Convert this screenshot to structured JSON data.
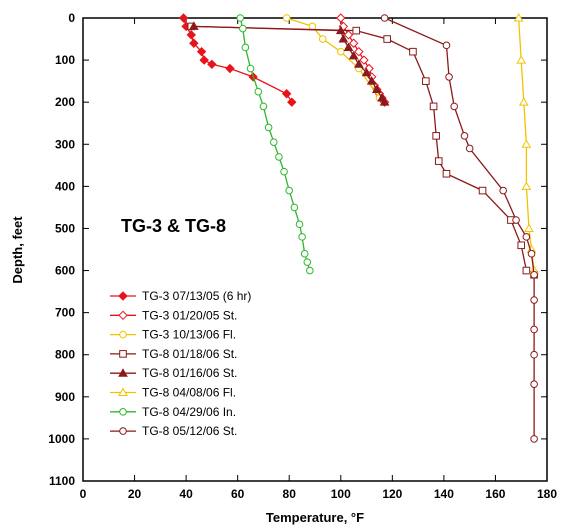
{
  "chart_data": {
    "type": "line",
    "annotation": "TG-3 & TG-8",
    "xlabel": "Temperature, °F",
    "ylabel": "Depth, feet",
    "xlim": [
      0,
      180
    ],
    "ylim": [
      0,
      1100
    ],
    "y_inverted": true,
    "x_ticks": [
      "0",
      "20",
      "40",
      "60",
      "80",
      "100",
      "120",
      "140",
      "160",
      "180"
    ],
    "y_ticks": [
      "0",
      "100",
      "200",
      "300",
      "400",
      "500",
      "600",
      "700",
      "800",
      "900",
      "1000",
      "1100"
    ],
    "grid": false,
    "legend_position": "bottom-left",
    "series": [
      {
        "name": "TG-3 07/13/05 (6 hr)",
        "color": "#e8141c",
        "marker": "diamond-filled",
        "x": [
          39,
          40,
          42,
          43,
          46,
          47,
          50,
          57,
          66,
          79,
          81
        ],
        "y": [
          0,
          20,
          40,
          60,
          80,
          100,
          110,
          120,
          140,
          180,
          200
        ]
      },
      {
        "name": "TG-3 01/20/05 St.",
        "color": "#e8141c",
        "marker": "diamond-open",
        "x": [
          100,
          101,
          103,
          105,
          107,
          109,
          111,
          112,
          113,
          114,
          115,
          116,
          117
        ],
        "y": [
          0,
          20,
          40,
          60,
          80,
          100,
          120,
          140,
          160,
          170,
          180,
          190,
          200
        ]
      },
      {
        "name": "TG-3 10/13/06 Fl.",
        "color": "#f2c200",
        "marker": "circle-open",
        "x": [
          79,
          89,
          93,
          100,
          107,
          115
        ],
        "y": [
          0,
          20,
          50,
          80,
          120,
          190
        ]
      },
      {
        "name": "TG-8 01/18/06 St.",
        "color": "#8b1a1a",
        "marker": "square-open",
        "x": [
          42,
          106,
          118,
          128,
          133,
          136,
          137,
          138,
          141,
          155,
          166,
          170,
          172,
          175
        ],
        "y": [
          20,
          30,
          50,
          80,
          150,
          210,
          280,
          340,
          370,
          410,
          480,
          540,
          600,
          610
        ]
      },
      {
        "name": "TG-8 01/16/06 St.",
        "color": "#8b1a1a",
        "marker": "triangle-filled",
        "x": [
          43,
          100,
          101,
          103,
          105,
          107,
          110,
          112,
          114,
          116,
          117
        ],
        "y": [
          20,
          30,
          50,
          70,
          90,
          110,
          130,
          150,
          170,
          190,
          200
        ]
      },
      {
        "name": "TG-8 04/08/06 Fl.",
        "color": "#f2c200",
        "marker": "triangle-open",
        "x": [
          169,
          170,
          171,
          172,
          172,
          173,
          174,
          175
        ],
        "y": [
          0,
          100,
          200,
          300,
          400,
          500,
          550,
          600
        ]
      },
      {
        "name": "TG-8 04/29/06 In.",
        "color": "#2db82d",
        "marker": "circle-open",
        "x": [
          61,
          62,
          63,
          65,
          68,
          70,
          72,
          74,
          76,
          78,
          80,
          82,
          84,
          85,
          86,
          87,
          88
        ],
        "y": [
          0,
          25,
          70,
          120,
          175,
          210,
          260,
          295,
          330,
          365,
          410,
          450,
          490,
          520,
          560,
          580,
          600
        ]
      },
      {
        "name": "TG-8 05/12/06 St.",
        "color": "#8b1a1a",
        "marker": "circle-open",
        "x": [
          117,
          141,
          142,
          144,
          148,
          150,
          163,
          168,
          172,
          174,
          175,
          175,
          175,
          175,
          175,
          175
        ],
        "y": [
          0,
          65,
          140,
          210,
          280,
          310,
          410,
          480,
          520,
          560,
          610,
          670,
          740,
          800,
          870,
          1000
        ]
      }
    ]
  }
}
